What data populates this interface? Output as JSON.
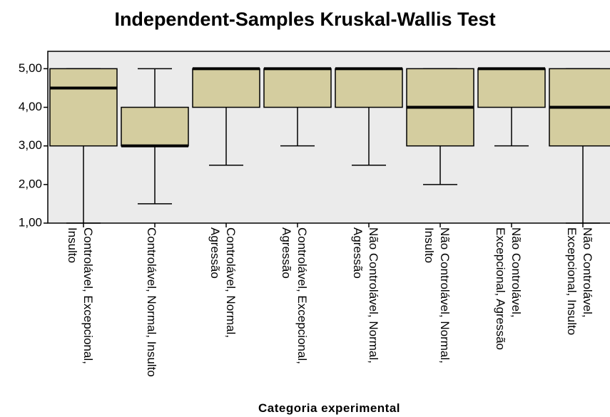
{
  "chart_data": {
    "type": "box",
    "title": "Independent-Samples Kruskal-Wallis Test",
    "x_label": "Categoria experimental",
    "categories": [
      "Controlável, Excepcional, Insulto",
      "Controlável, Normal, Insulto",
      "Controlável, Normal, Agressão",
      "Controlável, Excepcional, Agressão",
      "Não Controlável, Normal, Agressão",
      "Não Controlável, Normal, Insulto",
      "Não Controlável, Excepcional, Agressão",
      "Não Controlável, Excepcional, Insulto"
    ],
    "boxes": [
      {
        "min": 1,
        "q1": 3,
        "median": 4.5,
        "q3": 5,
        "max": 5
      },
      {
        "min": 1.5,
        "q1": 3,
        "median": 3,
        "q3": 4,
        "max": 5
      },
      {
        "min": 2.5,
        "q1": 4,
        "median": 5,
        "q3": 5,
        "max": 5
      },
      {
        "min": 3,
        "q1": 4,
        "median": 5,
        "q3": 5,
        "max": 5
      },
      {
        "min": 2.5,
        "q1": 4,
        "median": 5,
        "q3": 5,
        "max": 5
      },
      {
        "min": 2,
        "q1": 3,
        "median": 4,
        "q3": 5,
        "max": 5
      },
      {
        "min": 3,
        "q1": 4,
        "median": 5,
        "q3": 5,
        "max": 5
      },
      {
        "min": 1,
        "q1": 3,
        "median": 4,
        "q3": 5,
        "max": 5
      }
    ],
    "color": "#d4cd9f",
    "ylim": [
      1,
      5.45
    ],
    "yticks": [
      {
        "value": 1,
        "label": "1,00"
      },
      {
        "value": 2,
        "label": "2,00"
      },
      {
        "value": 3,
        "label": "3,00"
      },
      {
        "value": 4,
        "label": "4,00"
      },
      {
        "value": 5,
        "label": "5,00"
      }
    ]
  }
}
